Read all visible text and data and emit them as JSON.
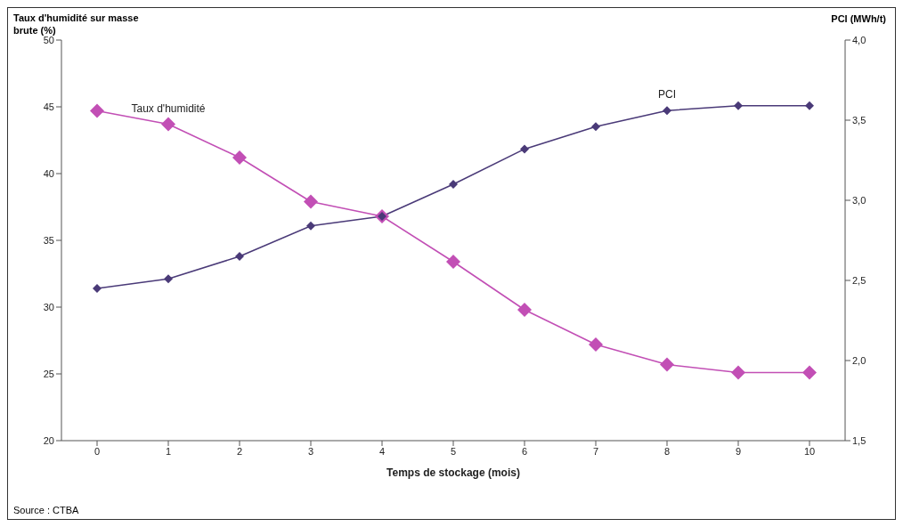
{
  "chart_data": {
    "type": "line",
    "xlabel": "Temps de stockage (mois)",
    "ylabel": "Taux d'humidité sur masse brute (%)",
    "y2label": "PCI (MWh/t)",
    "categories": [
      "0",
      "1",
      "2",
      "3",
      "4",
      "5",
      "6",
      "7",
      "8",
      "9",
      "10"
    ],
    "series": [
      {
        "name": "Taux d'humidité",
        "color": "#c24fb5",
        "values": [
          44.7,
          43.7,
          41.2,
          37.9,
          36.8,
          33.4,
          29.8,
          27.2,
          25.7,
          25.1,
          25.1
        ]
      },
      {
        "name": "PCI",
        "color": "#4a3a78",
        "axis": "y2",
        "values": [
          2.45,
          2.51,
          2.65,
          2.84,
          2.9,
          3.1,
          3.32,
          3.46,
          3.56,
          3.59,
          3.59
        ]
      }
    ],
    "ylim": [
      20,
      50
    ],
    "yticks": [
      20,
      25,
      30,
      35,
      40,
      45,
      50
    ],
    "y2lim": [
      1.5,
      4
    ],
    "y2ticks": [
      {
        "value": 1.5,
        "label": "1,5"
      },
      {
        "value": 2,
        "label": "2,0"
      },
      {
        "value": 2.5,
        "label": "2,5"
      },
      {
        "value": 3,
        "label": "3,0"
      },
      {
        "value": 3.5,
        "label": "3,5"
      },
      {
        "value": 4,
        "label": "4,0"
      }
    ],
    "marker": "diamond",
    "line_style": "solid",
    "annotations": [
      "Source : CTBA"
    ]
  }
}
